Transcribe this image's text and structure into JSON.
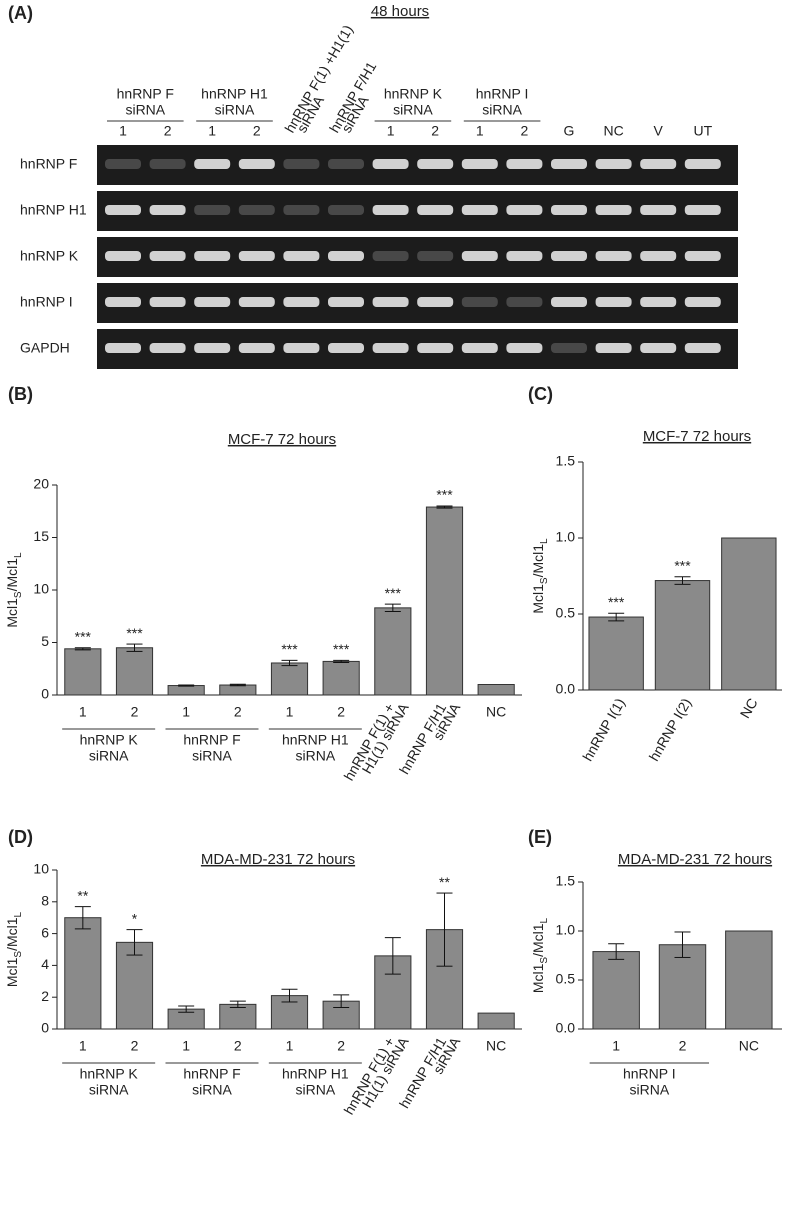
{
  "gel": {
    "label": "(A)",
    "title": "48 hours",
    "columns": [
      {
        "lines": [
          "hnRNP F",
          "siRNA"
        ],
        "lanes": [
          "1",
          "2"
        ]
      },
      {
        "lines": [
          "hnRNP H1",
          "siRNA"
        ],
        "lanes": [
          "1",
          "2"
        ]
      },
      {
        "rotated": [
          "hnRNP F(1) +H1(1)",
          "siRNA"
        ]
      },
      {
        "rotated": [
          "hnRNP F/H1",
          "siRNA"
        ]
      },
      {
        "lines": [
          "hnRNP K",
          "siRNA"
        ],
        "lanes": [
          "1",
          "2"
        ]
      },
      {
        "lines": [
          "hnRNP I",
          "siRNA"
        ],
        "lanes": [
          "1",
          "2"
        ]
      },
      {
        "lanes": [
          "G"
        ]
      },
      {
        "lanes": [
          "NC"
        ]
      },
      {
        "lanes": [
          "V"
        ]
      },
      {
        "lanes": [
          "UT"
        ]
      }
    ],
    "rows": [
      "hnRNP F",
      "hnRNP H1",
      "hnRNP K",
      "hnRNP I",
      "GAPDH"
    ]
  },
  "chart_data": [
    {
      "type": "bar",
      "label": "(B)",
      "title": "MCF-7 72 hours",
      "ylabel": [
        "Mcl1",
        "S",
        "/Mcl1",
        "L"
      ],
      "color": "#8a8a8a",
      "ylim": [
        0,
        20
      ],
      "yticks": [
        0,
        5,
        10,
        15,
        20
      ],
      "groups": [
        {
          "label": [
            "hnRNP K",
            "siRNA"
          ],
          "categories": [
            "1",
            "2"
          ],
          "values": [
            4.4,
            4.5
          ],
          "errors": [
            0.1,
            0.35
          ],
          "annotations": [
            "***",
            "***"
          ]
        },
        {
          "label": [
            "hnRNP F",
            "siRNA"
          ],
          "categories": [
            "1",
            "2"
          ],
          "values": [
            0.9,
            0.95
          ],
          "errors": [
            0.05,
            0.07
          ],
          "annotations": [
            null,
            null
          ]
        },
        {
          "label": [
            "hnRNP H1",
            "siRNA"
          ],
          "categories": [
            "1",
            "2"
          ],
          "values": [
            3.05,
            3.2
          ],
          "errors": [
            0.25,
            0.1
          ],
          "annotations": [
            "***",
            "***"
          ]
        },
        {
          "rotated": true,
          "categories": [
            [
              "hnRNP F(1) +",
              "H1(1) siRNA"
            ],
            [
              "hnRNP F/H1",
              "siRNA"
            ]
          ],
          "values": [
            8.3,
            17.9
          ],
          "errors": [
            0.35,
            0.1
          ],
          "annotations": [
            "***",
            "***"
          ]
        },
        {
          "categories": [
            "NC"
          ],
          "values": [
            1.0
          ],
          "errors": [
            0
          ],
          "annotations": [
            null
          ]
        }
      ]
    },
    {
      "type": "bar",
      "label": "(C)",
      "title": "MCF-7 72 hours",
      "ylabel": [
        "Mcl1",
        "S",
        "/Mcl1",
        "L"
      ],
      "color": "#8a8a8a",
      "ylim": [
        0,
        1.5
      ],
      "yticks": [
        {
          "value": 0,
          "label": "0.0"
        },
        0.5,
        {
          "value": 1,
          "label": "1.0"
        },
        1.5
      ],
      "groups": [
        {
          "rotated": true,
          "categories": [
            "hnRNP I(1)",
            "hnRNP I(2)",
            "NC"
          ],
          "values": [
            0.48,
            0.72,
            1.0
          ],
          "errors": [
            0.025,
            0.025,
            0
          ],
          "annotations": [
            "***",
            "***",
            null
          ]
        }
      ]
    },
    {
      "type": "bar",
      "label": "(D)",
      "title": "MDA-MD-231 72 hours",
      "ylabel": [
        "Mcl1",
        "S",
        "/Mcl1",
        "L"
      ],
      "color": "#8a8a8a",
      "ylim": [
        0,
        10
      ],
      "yticks": [
        0,
        2,
        4,
        6,
        8,
        10
      ],
      "groups": [
        {
          "label": [
            "hnRNP K",
            "siRNA"
          ],
          "categories": [
            "1",
            "2"
          ],
          "values": [
            7.0,
            5.45
          ],
          "errors": [
            0.7,
            0.8
          ],
          "annotations": [
            "**",
            "*"
          ]
        },
        {
          "label": [
            "hnRNP F",
            "siRNA"
          ],
          "categories": [
            "1",
            "2"
          ],
          "values": [
            1.25,
            1.55
          ],
          "errors": [
            0.2,
            0.2
          ],
          "annotations": [
            null,
            null
          ]
        },
        {
          "label": [
            "hnRNP H1",
            "siRNA"
          ],
          "categories": [
            "1",
            "2"
          ],
          "values": [
            2.1,
            1.75
          ],
          "errors": [
            0.4,
            0.4
          ],
          "annotations": [
            null,
            null
          ]
        },
        {
          "rotated": true,
          "categories": [
            [
              "hnRNP F(1) +",
              "H1(1) siRNA"
            ],
            [
              "hnRNP F/H1",
              "siRNA"
            ]
          ],
          "values": [
            4.6,
            6.25
          ],
          "errors": [
            1.15,
            2.3
          ],
          "annotations": [
            null,
            "**"
          ]
        },
        {
          "categories": [
            "NC"
          ],
          "values": [
            1.0
          ],
          "errors": [
            0
          ],
          "annotations": [
            null
          ]
        }
      ]
    },
    {
      "type": "bar",
      "label": "(E)",
      "title": "MDA-MD-231 72 hours",
      "ylabel": [
        "Mcl1",
        "S",
        "/Mcl1",
        "L"
      ],
      "color": "#8a8a8a",
      "ylim": [
        0,
        1.5
      ],
      "yticks": [
        {
          "value": 0,
          "label": "0.0"
        },
        0.5,
        {
          "value": 1,
          "label": "1.0"
        },
        1.5
      ],
      "groups": [
        {
          "label": [
            "hnRNP I",
            "siRNA"
          ],
          "categories": [
            "1",
            "2"
          ],
          "values": [
            0.79,
            0.86
          ],
          "errors": [
            0.08,
            0.13
          ],
          "annotations": [
            null,
            null
          ]
        },
        {
          "categories": [
            "NC"
          ],
          "values": [
            1.0
          ],
          "errors": [
            0
          ],
          "annotations": [
            null
          ]
        }
      ]
    }
  ]
}
